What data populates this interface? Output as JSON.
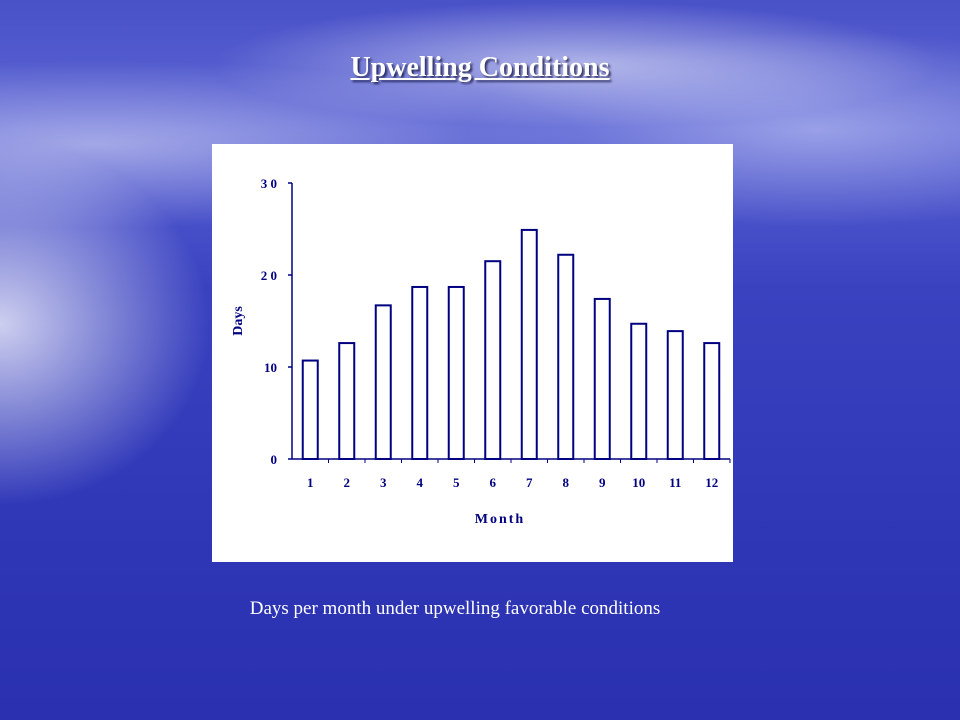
{
  "slide": {
    "title": "Upwelling Conditions",
    "caption": "Days per month under upwelling favorable conditions"
  },
  "colors": {
    "bar_stroke": "#000080",
    "axis": "#000080",
    "chart_bg": "#ffffff"
  },
  "chart_data": {
    "type": "bar",
    "categories": [
      "1",
      "2",
      "3",
      "4",
      "5",
      "6",
      "7",
      "8",
      "9",
      "10",
      "11",
      "12"
    ],
    "values": [
      10.7,
      12.6,
      16.7,
      18.7,
      18.7,
      21.5,
      24.9,
      22.2,
      17.4,
      14.7,
      13.9,
      12.6
    ],
    "xlabel": "Month",
    "ylabel": "Days",
    "ylim": [
      0,
      30
    ],
    "yticks": [
      "0",
      "10",
      "2 0",
      "3 0"
    ],
    "grid": false,
    "legend": "none"
  }
}
